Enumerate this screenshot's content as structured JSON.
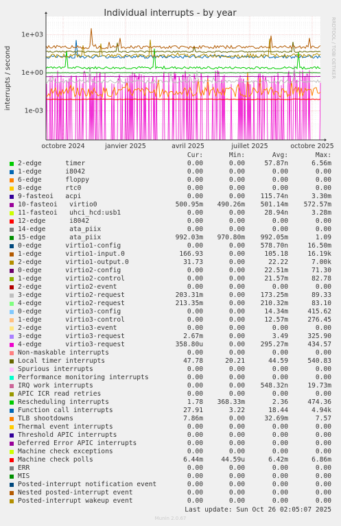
{
  "chart_data": {
    "type": "line",
    "title": "Individual interrupts - by year",
    "ylabel": "interrupts / second",
    "y_scale": "log",
    "y_ticks": [
      "1e+03",
      "1e+00",
      "1e-03"
    ],
    "x_ticks": [
      "octobre 2024",
      "janvier 2025",
      "avril 2025",
      "juillet 2025",
      "octobre 2025"
    ],
    "side_label": "RRDTOOL / TOBI OETIKER",
    "legend_headers": [
      "Cur:",
      "Min:",
      "Avg:",
      "Max:"
    ],
    "series": [
      {
        "name": "2-edge      timer",
        "color": "#00cc00",
        "cur": "0.00",
        "min": "0.00",
        "avg": "57.87n",
        "max": "6.56m"
      },
      {
        "name": "1-edge      i8042",
        "color": "#0066b3",
        "cur": "0.00",
        "min": "0.00",
        "avg": "0.00",
        "max": "0.00"
      },
      {
        "name": "6-edge      floppy",
        "color": "#ff8000",
        "cur": "0.00",
        "min": "0.00",
        "avg": "0.00",
        "max": "0.00"
      },
      {
        "name": "8-edge      rtc0",
        "color": "#ffcc00",
        "cur": "0.00",
        "min": "0.00",
        "avg": "0.00",
        "max": "0.00"
      },
      {
        "name": "9-fasteoi   acpi",
        "color": "#330099",
        "cur": "0.00",
        "min": "0.00",
        "avg": "115.74n",
        "max": "3.30m"
      },
      {
        "name": "10-fasteoi   virtio0",
        "color": "#990099",
        "cur": "500.95m",
        "min": "490.26m",
        "avg": "501.14m",
        "max": "572.57m"
      },
      {
        "name": "11-fasteoi   uhci_hcd:usb1",
        "color": "#ccff00",
        "cur": "0.00",
        "min": "0.00",
        "avg": "28.94n",
        "max": "3.28m"
      },
      {
        "name": "12-edge      i8042",
        "color": "#ff0000",
        "cur": "0.00",
        "min": "0.00",
        "avg": "0.00",
        "max": "0.00"
      },
      {
        "name": "14-edge      ata_piix",
        "color": "#808080",
        "cur": "0.00",
        "min": "0.00",
        "avg": "0.00",
        "max": "0.00"
      },
      {
        "name": "15-edge      ata_piix",
        "color": "#008f00",
        "cur": "992.03m",
        "min": "970.80m",
        "avg": "992.05m",
        "max": "1.09"
      },
      {
        "name": "0-edge      virtio1-config",
        "color": "#00487d",
        "cur": "0.00",
        "min": "0.00",
        "avg": "578.70n",
        "max": "16.50m"
      },
      {
        "name": "1-edge      virtio1-input.0",
        "color": "#b35a00",
        "cur": "166.93",
        "min": "0.00",
        "avg": "105.18",
        "max": "16.19k"
      },
      {
        "name": "2-edge      virtio1-output.0",
        "color": "#b38f00",
        "cur": "31.73",
        "min": "0.00",
        "avg": "22.22",
        "max": "7.00k"
      },
      {
        "name": "0-edge      virtio2-config",
        "color": "#6b006b",
        "cur": "0.00",
        "min": "0.00",
        "avg": "22.51m",
        "max": "71.30"
      },
      {
        "name": "1-edge      virtio2-control",
        "color": "#8fb300",
        "cur": "0.00",
        "min": "0.00",
        "avg": "21.57m",
        "max": "82.78"
      },
      {
        "name": "2-edge      virtio2-event",
        "color": "#b30000",
        "cur": "0.00",
        "min": "0.00",
        "avg": "0.00",
        "max": "0.00"
      },
      {
        "name": "3-edge      virtio2-request",
        "color": "#bebebe",
        "cur": "203.31m",
        "min": "0.00",
        "avg": "173.25m",
        "max": "89.33"
      },
      {
        "name": "4-edge      virtio2-request",
        "color": "#80ff80",
        "cur": "213.35m",
        "min": "0.00",
        "avg": "210.32m",
        "max": "83.10"
      },
      {
        "name": "0-edge      virtio3-config",
        "color": "#80c9ff",
        "cur": "0.00",
        "min": "0.00",
        "avg": "14.34m",
        "max": "415.62"
      },
      {
        "name": "1-edge      virtio3-control",
        "color": "#ffc080",
        "cur": "0.00",
        "min": "0.00",
        "avg": "12.57m",
        "max": "276.45"
      },
      {
        "name": "2-edge      virtio3-event",
        "color": "#ffe680",
        "cur": "0.00",
        "min": "0.00",
        "avg": "0.00",
        "max": "0.00"
      },
      {
        "name": "3-edge      virtio3-request",
        "color": "#aa80ff",
        "cur": "2.67m",
        "min": "0.00",
        "avg": "3.49",
        "max": "325.90"
      },
      {
        "name": "4-edge      virtio3-request",
        "color": "#ee00cc",
        "cur": "358.80u",
        "min": "0.00",
        "avg": "295.27m",
        "max": "434.57"
      },
      {
        "name": "Non-maskable interrupts",
        "color": "#ff8080",
        "cur": "0.00",
        "min": "0.00",
        "avg": "0.00",
        "max": "0.00"
      },
      {
        "name": "Local timer interrupts",
        "color": "#666600",
        "cur": "47.78",
        "min": "20.21",
        "avg": "44.59",
        "max": "540.83"
      },
      {
        "name": "Spurious interrupts",
        "color": "#ffbfff",
        "cur": "0.00",
        "min": "0.00",
        "avg": "0.00",
        "max": "0.00"
      },
      {
        "name": "Performance monitoring interrupts",
        "color": "#00ffcc",
        "cur": "0.00",
        "min": "0.00",
        "avg": "0.00",
        "max": "0.00"
      },
      {
        "name": "IRQ work interrupts",
        "color": "#cc6699",
        "cur": "0.00",
        "min": "0.00",
        "avg": "548.32n",
        "max": "19.73m"
      },
      {
        "name": "APIC ICR read retries",
        "color": "#999900",
        "cur": "0.00",
        "min": "0.00",
        "avg": "0.00",
        "max": "0.00"
      },
      {
        "name": "Rescheduling interrupts",
        "color": "#00cc00",
        "cur": "1.78",
        "min": "368.33m",
        "avg": "2.36",
        "max": "474.36"
      },
      {
        "name": "Function call interrupts",
        "color": "#0066b3",
        "cur": "27.91",
        "min": "3.22",
        "avg": "18.44",
        "max": "4.94k"
      },
      {
        "name": "TLB shootdowns",
        "color": "#ff8000",
        "cur": "7.86m",
        "min": "0.00",
        "avg": "32.69m",
        "max": "7.57"
      },
      {
        "name": "Thermal event interrupts",
        "color": "#ffcc00",
        "cur": "0.00",
        "min": "0.00",
        "avg": "0.00",
        "max": "0.00"
      },
      {
        "name": "Threshold APIC interrupts",
        "color": "#330099",
        "cur": "0.00",
        "min": "0.00",
        "avg": "0.00",
        "max": "0.00"
      },
      {
        "name": "Deferred Error APIC interrupts",
        "color": "#990099",
        "cur": "0.00",
        "min": "0.00",
        "avg": "0.00",
        "max": "0.00"
      },
      {
        "name": "Machine check exceptions",
        "color": "#ccff00",
        "cur": "0.00",
        "min": "0.00",
        "avg": "0.00",
        "max": "0.00"
      },
      {
        "name": "Machine check polls",
        "color": "#ff0000",
        "cur": "6.44m",
        "min": "44.59u",
        "avg": "6.42m",
        "max": "6.86m"
      },
      {
        "name": "ERR",
        "color": "#808080",
        "cur": "0.00",
        "min": "0.00",
        "avg": "0.00",
        "max": "0.00"
      },
      {
        "name": "MIS",
        "color": "#008f00",
        "cur": "0.00",
        "min": "0.00",
        "avg": "0.00",
        "max": "0.00"
      },
      {
        "name": "Posted-interrupt notification event",
        "color": "#00487d",
        "cur": "0.00",
        "min": "0.00",
        "avg": "0.00",
        "max": "0.00"
      },
      {
        "name": "Nested posted-interrupt event",
        "color": "#b35a00",
        "cur": "0.00",
        "min": "0.00",
        "avg": "0.00",
        "max": "0.00"
      },
      {
        "name": "Posted-interrupt wakeup event",
        "color": "#b38f00",
        "cur": "0.00",
        "min": "0.00",
        "avg": "0.00",
        "max": "0.00"
      }
    ],
    "last_update": "Last update: Sun Oct 26 02:05:07 2025",
    "footer": "Munin 2.0.67"
  }
}
